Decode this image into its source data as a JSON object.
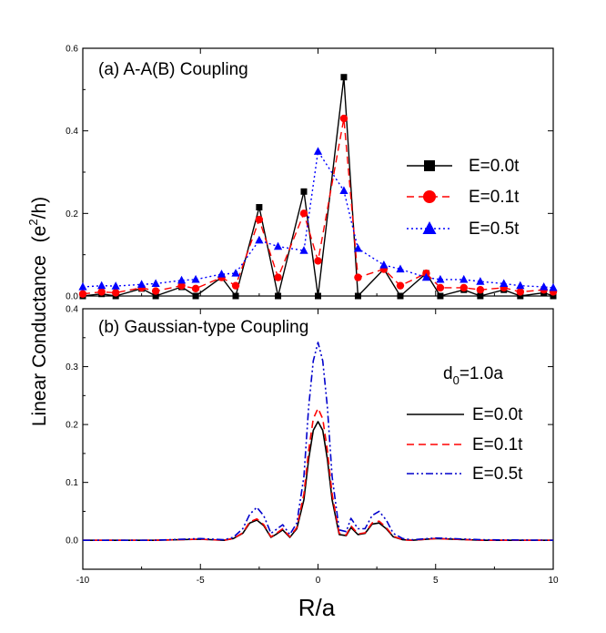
{
  "figure": {
    "ylabel_text": "Linear Conductance",
    "ylabel_unit": "(e",
    "ylabel_sup": "2",
    "ylabel_tail": "/h)",
    "xlabel": "R/a"
  },
  "chart_data": [
    {
      "type": "line",
      "title": "(a) A-A(B) Coupling",
      "xlim": [
        -10,
        10
      ],
      "ylim": [
        0.0,
        0.6
      ],
      "yticks": [
        0.0,
        0.2,
        0.4,
        0.6
      ],
      "ytick_labels": [
        "0.0",
        "0.2",
        "0.4",
        "0.6"
      ],
      "legend_position": "right",
      "series": [
        {
          "name": "E=0.0t",
          "color": "#000000",
          "dash": "solid",
          "marker": "square",
          "x": [
            -10,
            -9.2,
            -8.6,
            -7.5,
            -6.9,
            -5.8,
            -5.2,
            -4.1,
            -3.5,
            -2.5,
            -1.7,
            -0.6,
            0.0,
            1.1,
            1.7,
            2.8,
            3.5,
            4.6,
            5.2,
            6.2,
            6.9,
            7.9,
            8.6,
            9.6,
            10
          ],
          "y": [
            0.0,
            0.005,
            0.0,
            0.018,
            0.0,
            0.022,
            0.0,
            0.045,
            0.0,
            0.215,
            0.0,
            0.253,
            0.0,
            0.53,
            0.0,
            0.065,
            0.0,
            0.055,
            0.0,
            0.015,
            0.0,
            0.015,
            0.0,
            0.008,
            0.0
          ]
        },
        {
          "name": "E=0.1t",
          "color": "#ff0000",
          "dash": "dashed",
          "marker": "circle",
          "x": [
            -10,
            -9.2,
            -8.6,
            -7.5,
            -6.9,
            -5.8,
            -5.2,
            -4.1,
            -3.5,
            -2.5,
            -1.7,
            -0.6,
            0.0,
            1.1,
            1.7,
            2.8,
            3.5,
            4.6,
            5.2,
            6.2,
            6.9,
            7.9,
            8.6,
            9.6,
            10
          ],
          "y": [
            0.005,
            0.01,
            0.008,
            0.02,
            0.012,
            0.025,
            0.018,
            0.045,
            0.025,
            0.185,
            0.045,
            0.2,
            0.085,
            0.43,
            0.045,
            0.065,
            0.025,
            0.055,
            0.02,
            0.02,
            0.015,
            0.02,
            0.01,
            0.015,
            0.01
          ]
        },
        {
          "name": "E=0.5t",
          "color": "#0000ff",
          "dash": "dotted",
          "marker": "triangle",
          "x": [
            -10,
            -9.2,
            -8.6,
            -7.5,
            -6.9,
            -5.8,
            -5.2,
            -4.1,
            -3.5,
            -2.5,
            -1.7,
            -0.6,
            0.0,
            1.1,
            1.7,
            2.8,
            3.5,
            4.6,
            5.2,
            6.2,
            6.9,
            7.9,
            8.6,
            9.6,
            10
          ],
          "y": [
            0.022,
            0.025,
            0.024,
            0.028,
            0.03,
            0.038,
            0.04,
            0.053,
            0.055,
            0.135,
            0.12,
            0.11,
            0.35,
            0.255,
            0.115,
            0.075,
            0.065,
            0.045,
            0.04,
            0.04,
            0.035,
            0.03,
            0.025,
            0.022,
            0.02
          ]
        }
      ]
    },
    {
      "type": "line",
      "title": "(b) Gaussian-type Coupling",
      "annotation_main": "d",
      "annotation_sub": "0",
      "annotation_tail": "=1.0a",
      "xlim": [
        -10,
        10
      ],
      "ylim": [
        -0.05,
        0.4
      ],
      "xticks": [
        -10,
        -5,
        0,
        5,
        10
      ],
      "xtick_labels": [
        "-10",
        "-5",
        "0",
        "5",
        "10"
      ],
      "yticks": [
        0.0,
        0.1,
        0.2,
        0.3,
        0.4
      ],
      "ytick_labels": [
        "0.0",
        "0.1",
        "0.2",
        "0.3",
        "0.4"
      ],
      "legend_position": "right",
      "series": [
        {
          "name": "E=0.0t",
          "color": "#000000",
          "dash": "solid",
          "x": [
            -10,
            -7,
            -5,
            -4,
            -3.6,
            -3.2,
            -2.9,
            -2.6,
            -2.3,
            -2.0,
            -1.8,
            -1.5,
            -1.2,
            -0.9,
            -0.6,
            -0.4,
            -0.2,
            0.0,
            0.2,
            0.4,
            0.6,
            0.9,
            1.2,
            1.4,
            1.7,
            2.0,
            2.3,
            2.6,
            2.9,
            3.2,
            3.6,
            4.0,
            5.0,
            7.0,
            10
          ],
          "y": [
            0.0,
            0.0,
            0.002,
            0.0,
            0.003,
            0.012,
            0.03,
            0.035,
            0.025,
            0.005,
            0.01,
            0.018,
            0.005,
            0.02,
            0.07,
            0.14,
            0.19,
            0.205,
            0.19,
            0.14,
            0.07,
            0.01,
            0.008,
            0.022,
            0.01,
            0.012,
            0.028,
            0.03,
            0.02,
            0.006,
            0.001,
            0.0,
            0.003,
            0.0,
            0.0
          ]
        },
        {
          "name": "E=0.1t",
          "color": "#ff0000",
          "dash": "dashed",
          "x": [
            -10,
            -7,
            -5,
            -4,
            -3.6,
            -3.2,
            -2.9,
            -2.6,
            -2.3,
            -2.0,
            -1.8,
            -1.5,
            -1.2,
            -0.9,
            -0.6,
            -0.4,
            -0.2,
            0.0,
            0.2,
            0.4,
            0.6,
            0.9,
            1.2,
            1.4,
            1.7,
            2.0,
            2.3,
            2.6,
            2.9,
            3.2,
            3.6,
            4.0,
            5.0,
            7.0,
            10
          ],
          "y": [
            0.0,
            0.0,
            0.002,
            0.0,
            0.003,
            0.013,
            0.032,
            0.037,
            0.027,
            0.006,
            0.011,
            0.02,
            0.006,
            0.022,
            0.08,
            0.155,
            0.21,
            0.228,
            0.21,
            0.155,
            0.08,
            0.012,
            0.009,
            0.025,
            0.011,
            0.013,
            0.03,
            0.033,
            0.022,
            0.007,
            0.001,
            0.0,
            0.003,
            0.0,
            0.0
          ]
        },
        {
          "name": "E=0.5t",
          "color": "#0000cc",
          "dash": "dashdotdot",
          "x": [
            -10,
            -7,
            -5,
            -4,
            -3.6,
            -3.2,
            -2.9,
            -2.6,
            -2.3,
            -2.0,
            -1.8,
            -1.5,
            -1.2,
            -0.9,
            -0.6,
            -0.4,
            -0.2,
            0.0,
            0.2,
            0.4,
            0.6,
            0.9,
            1.2,
            1.4,
            1.7,
            2.0,
            2.3,
            2.6,
            2.9,
            3.2,
            3.6,
            4.0,
            5.0,
            7.0,
            10
          ],
          "y": [
            0.0,
            0.0,
            0.003,
            0.001,
            0.005,
            0.02,
            0.045,
            0.057,
            0.042,
            0.012,
            0.018,
            0.027,
            0.01,
            0.03,
            0.11,
            0.23,
            0.31,
            0.342,
            0.31,
            0.23,
            0.11,
            0.018,
            0.015,
            0.038,
            0.02,
            0.02,
            0.043,
            0.05,
            0.035,
            0.012,
            0.003,
            0.001,
            0.004,
            0.001,
            0.0
          ]
        }
      ]
    }
  ]
}
